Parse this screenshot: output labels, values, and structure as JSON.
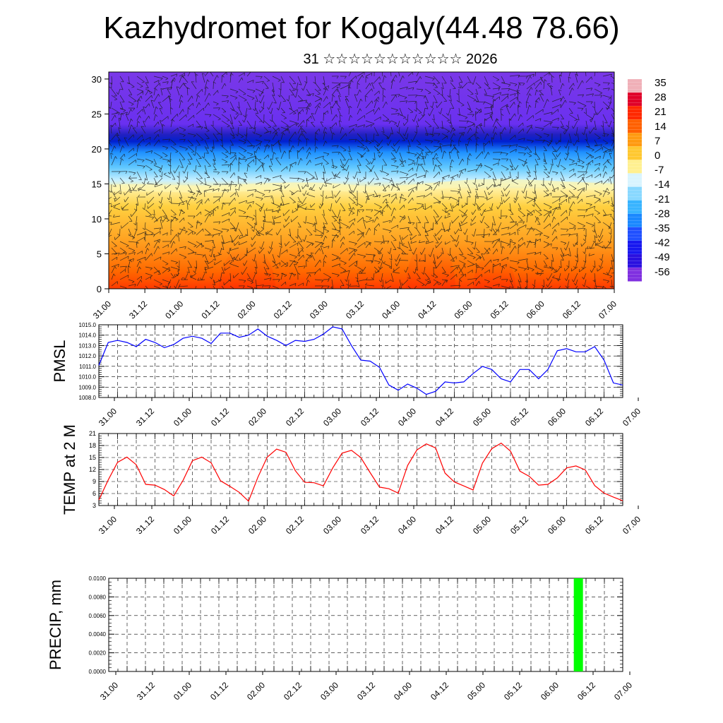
{
  "header": {
    "title": "Kazhydromet for Kogaly(44.48 78.66)",
    "subtitle": "31 ☆☆☆☆☆☆☆☆☆☆☆ 2026"
  },
  "time_ticks": [
    "31.00",
    "31.12",
    "01.00",
    "01.12",
    "02.00",
    "02.12",
    "03.00",
    "03.12",
    "04.00",
    "04.12",
    "05.00",
    "05.12",
    "06.00",
    "06.12",
    "07.00"
  ],
  "chart_data": [
    {
      "type": "heatmap",
      "name": "cross-section",
      "ylim": [
        0,
        31
      ],
      "yticks": [
        0,
        5,
        10,
        15,
        20,
        25,
        30
      ],
      "colorbar_labels": [
        "35",
        "28",
        "21",
        "14",
        "7",
        "0",
        "-7",
        "-14",
        "-21",
        "-28",
        "-35",
        "-42",
        "-49",
        "-56"
      ],
      "colors": {
        "warm": "#ff4000",
        "mid": "#ffcc40",
        "pale": "#fff4a0",
        "cold": "#30b0ff",
        "deep": "#1010e0",
        "top": "#7a30e8"
      }
    },
    {
      "type": "line",
      "name": "pmsl",
      "ylabel": "PMSL",
      "ylim": [
        1008.0,
        1015.0
      ],
      "yticks": [
        "1008.0",
        "1009.0",
        "1010.0",
        "1011.0",
        "1012.0",
        "1013.0",
        "1014.0",
        "1015.0"
      ],
      "color": "#0000ff",
      "step_hours": 3,
      "values": [
        1011.1,
        1013.3,
        1013.5,
        1013.3,
        1012.9,
        1013.6,
        1013.3,
        1012.8,
        1013.1,
        1013.7,
        1013.9,
        1013.7,
        1013.2,
        1014.2,
        1014.2,
        1013.8,
        1014.0,
        1014.6,
        1013.9,
        1013.5,
        1013.0,
        1013.5,
        1013.4,
        1013.6,
        1014.1,
        1014.8,
        1014.6,
        1013.0,
        1011.6,
        1011.5,
        1010.9,
        1009.2,
        1008.7,
        1009.3,
        1008.9,
        1008.3,
        1008.6,
        1009.5,
        1009.4,
        1009.5,
        1010.3,
        1011.0,
        1010.7,
        1009.8,
        1009.5,
        1010.7,
        1010.7,
        1009.8,
        1010.7,
        1012.5,
        1012.7,
        1012.4,
        1012.4,
        1012.9,
        1011.6,
        1009.4,
        1009.2
      ]
    },
    {
      "type": "line",
      "name": "temp",
      "ylabel": "TEMP at 2 M",
      "ylim": [
        3,
        21
      ],
      "yticks": [
        "3",
        "6",
        "9",
        "12",
        "15",
        "18",
        "21"
      ],
      "color": "#ff0000",
      "step_hours": 3,
      "values": [
        4.4,
        9.4,
        13.8,
        15.1,
        13.2,
        8.3,
        8.1,
        7.0,
        5.4,
        9.3,
        14.2,
        15.1,
        13.7,
        9.2,
        7.8,
        6.3,
        4.1,
        10.1,
        15.1,
        17.1,
        16.3,
        11.7,
        8.8,
        8.7,
        7.9,
        12.4,
        16.1,
        16.8,
        15.0,
        11.2,
        7.6,
        7.2,
        6.1,
        13.0,
        16.9,
        18.4,
        17.4,
        11.1,
        8.9,
        7.9,
        6.9,
        13.6,
        17.2,
        18.6,
        16.6,
        11.6,
        10.3,
        8.1,
        8.3,
        9.9,
        12.4,
        12.9,
        11.9,
        8.0,
        6.1,
        5.1,
        4.2
      ]
    },
    {
      "type": "bar",
      "name": "precip",
      "ylabel": "PRECIP, mm",
      "ylim": [
        0,
        0.01
      ],
      "yticks": [
        "0.0000",
        "0.0020",
        "0.0040",
        "0.0060",
        "0.0080",
        "0.0100"
      ],
      "color": "#00ff00",
      "bars": [
        {
          "start_hours": 152,
          "end_hours": 155,
          "value": 0.01
        }
      ]
    }
  ]
}
